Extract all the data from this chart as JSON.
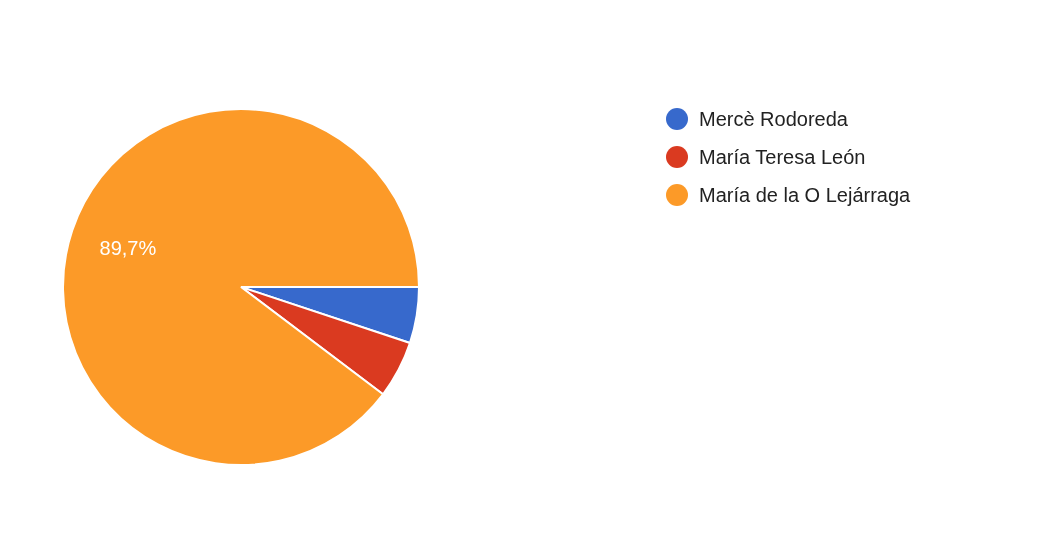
{
  "chart_data": {
    "type": "pie",
    "categories": [
      "Mercè Rodoreda",
      "María Teresa León",
      "María de la O Lejárraga"
    ],
    "values": [
      5.1,
      5.2,
      89.7
    ],
    "colors": [
      "#3769cc",
      "#da3a20",
      "#fc9a28"
    ],
    "value_labels": [
      null,
      null,
      "89,7%"
    ],
    "legend": "right"
  }
}
